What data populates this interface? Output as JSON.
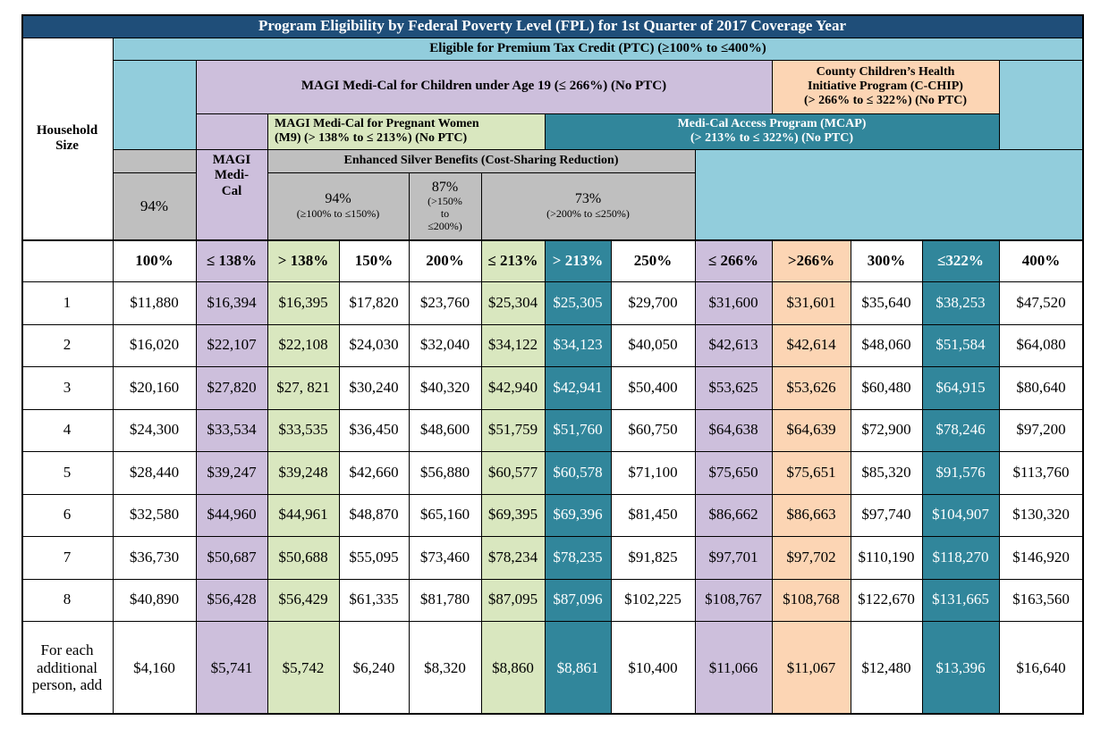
{
  "title": "Program Eligibility by Federal Poverty Level (FPL) for 1st Quarter of 2017 Coverage Year",
  "ptc_header": "Eligible for Premium Tax Credit (PTC) (≥100% to ≤400%)",
  "magi_children": "MAGI Medi-Cal for Children under Age 19 (≤ 266%) (No PTC)",
  "cchip": [
    "County Children’s Health",
    "Initiative Program (C-CHIP)",
    "(> 266% to ≤ 322%) (No PTC)"
  ],
  "household_size": [
    "Household",
    "Size"
  ],
  "pregnant": [
    "MAGI Medi-Cal for Pregnant Women",
    "(M9) (> 138% to ≤ 213%) (No PTC)"
  ],
  "mcap": [
    "Medi-Cal Access Program (MCAP)",
    "(> 213% to ≤ 322%) (No PTC)"
  ],
  "magi_medi_cal": [
    "MAGI",
    "Medi-",
    "Cal"
  ],
  "silver": "Enhanced Silver Benefits (Cost-Sharing Reduction)",
  "csr_94_first": "94%",
  "csr_94": {
    "pct": "94%",
    "range": "(≥100% to ≤150%)"
  },
  "csr_87": {
    "pct": "87%",
    "range": [
      "(>150%",
      "to",
      "≤200%)"
    ]
  },
  "csr_73": {
    "pct": "73%",
    "range": "(>200% to ≤250%)"
  },
  "columns": [
    "100%",
    "≤ 138%",
    "> 138%",
    "150%",
    "200%",
    "≤ 213%",
    "> 213%",
    "250%",
    "≤ 266%",
    ">266%",
    "300%",
    "≤322%",
    "400%"
  ],
  "rows": [
    {
      "size": "1",
      "values": [
        "$11,880",
        "$16,394",
        "$16,395",
        "$17,820",
        "$23,760",
        "$25,304",
        "$25,305",
        "$29,700",
        "$31,600",
        "$31,601",
        "$35,640",
        "$38,253",
        "$47,520"
      ]
    },
    {
      "size": "2",
      "values": [
        "$16,020",
        "$22,107",
        "$22,108",
        "$24,030",
        "$32,040",
        "$34,122",
        "$34,123",
        "$40,050",
        "$42,613",
        "$42,614",
        "$48,060",
        "$51,584",
        "$64,080"
      ]
    },
    {
      "size": "3",
      "values": [
        "$20,160",
        "$27,820",
        "$27, 821",
        "$30,240",
        "$40,320",
        "$42,940",
        "$42,941",
        "$50,400",
        "$53,625",
        "$53,626",
        "$60,480",
        "$64,915",
        "$80,640"
      ]
    },
    {
      "size": "4",
      "values": [
        "$24,300",
        "$33,534",
        "$33,535",
        "$36,450",
        "$48,600",
        "$51,759",
        "$51,760",
        "$60,750",
        "$64,638",
        "$64,639",
        "$72,900",
        "$78,246",
        "$97,200"
      ]
    },
    {
      "size": "5",
      "values": [
        "$28,440",
        "$39,247",
        "$39,248",
        "$42,660",
        "$56,880",
        "$60,577",
        "$60,578",
        "$71,100",
        "$75,650",
        "$75,651",
        "$85,320",
        "$91,576",
        "$113,760"
      ]
    },
    {
      "size": "6",
      "values": [
        "$32,580",
        "$44,960",
        "$44,961",
        "$48,870",
        "$65,160",
        "$69,395",
        "$69,396",
        "$81,450",
        "$86,662",
        "$86,663",
        "$97,740",
        "$104,907",
        "$130,320"
      ]
    },
    {
      "size": "7",
      "values": [
        "$36,730",
        "$50,687",
        "$50,688",
        "$55,095",
        "$73,460",
        "$78,234",
        "$78,235",
        "$91,825",
        "$97,701",
        "$97,702",
        "$110,190",
        "$118,270",
        "$146,920"
      ]
    },
    {
      "size": "8",
      "values": [
        "$40,890",
        "$56,428",
        "$56,429",
        "$61,335",
        "$81,780",
        "$87,095",
        "$87,096",
        "$102,225",
        "$108,767",
        "$108,768",
        "$122,670",
        "$131,665",
        "$163,560"
      ]
    },
    {
      "size": [
        "For each",
        "additional",
        "person, add"
      ],
      "values": [
        "$4,160",
        "$5,741",
        "$5,742",
        "$6,240",
        "$8,320",
        "$8,860",
        "$8,861",
        "$10,400",
        "$11,066",
        "$11,067",
        "$12,480",
        "$13,396",
        "$16,640"
      ]
    }
  ]
}
